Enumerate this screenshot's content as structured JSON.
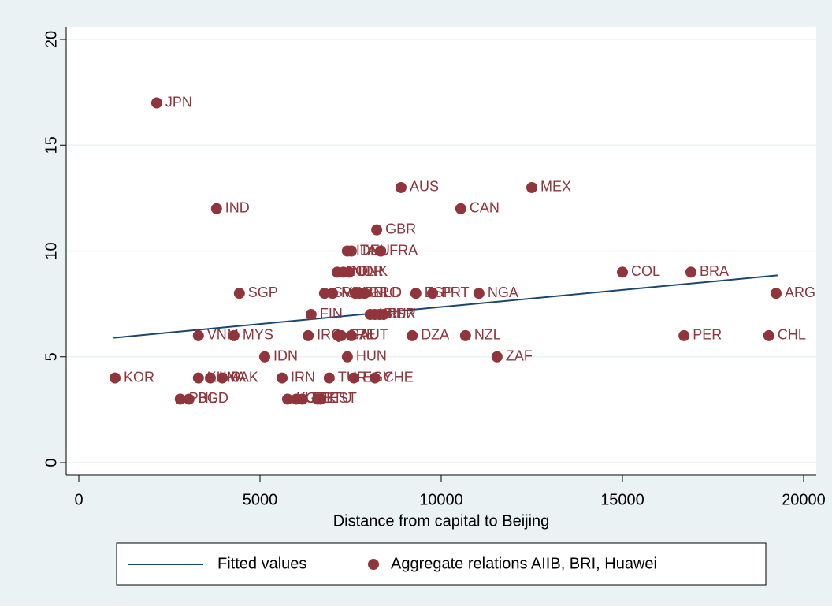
{
  "chart_data": {
    "type": "scatter",
    "xlabel": "Distance from capital to Beijing",
    "xlim": [
      0,
      20000
    ],
    "xticks": [
      0,
      5000,
      10000,
      15000,
      20000
    ],
    "ylim": [
      0,
      20
    ],
    "yticks": [
      0,
      5,
      10,
      15,
      20
    ],
    "grid": true,
    "legend": "bottom",
    "series": [
      {
        "name": "Fitted values",
        "type": "line",
        "color": "#1a476f",
        "x": [
          960,
          19280
        ],
        "values": [
          5.9,
          8.85
        ]
      },
      {
        "name": "Aggregate relations AIIB, BRI, Huawei",
        "type": "scatter",
        "color": "#90353b",
        "x": [
          2150,
          3800,
          8890,
          12500,
          10540,
          8220,
          7410,
          7520,
          8330,
          15000,
          16890,
          7130,
          7300,
          7460,
          4430,
          19240,
          6780,
          7000,
          7630,
          7740,
          7890,
          9300,
          9760,
          11040,
          6410,
          8040,
          8170,
          8300,
          8410,
          3300,
          4280,
          6330,
          7150,
          7240,
          7520,
          9200,
          10670,
          16700,
          19040,
          5130,
          7410,
          11540,
          1000,
          3300,
          3630,
          3960,
          5610,
          6910,
          7590,
          8170,
          2800,
          3040,
          5760,
          6000,
          6170,
          6590,
          6670
        ],
        "values": [
          17,
          12,
          13,
          13,
          12,
          11,
          10,
          10,
          10,
          9,
          9,
          9,
          9,
          9,
          8,
          8,
          8,
          8,
          8,
          8,
          8,
          8,
          8,
          8,
          7,
          7,
          7,
          7,
          7,
          6,
          6,
          6,
          6,
          6,
          6,
          6,
          6,
          6,
          6,
          5,
          5,
          5,
          4,
          4,
          4,
          4,
          4,
          4,
          4,
          4,
          3,
          3,
          3,
          3,
          3,
          3,
          3
        ],
        "labels": [
          "JPN",
          "IND",
          "AUS",
          "MEX",
          "CAN",
          "GBR",
          "ITA",
          "DEU",
          "FRA",
          "COL",
          "BRA",
          "POL",
          "NOR",
          "DNK",
          "SGP",
          "ARG",
          "SVK",
          "ROU",
          "BEL",
          "GRC",
          "NLD",
          "ESP",
          "PRT",
          "NGA",
          "FIN",
          "ISL",
          "IRL",
          "LUX",
          "ISR",
          "VNM",
          "MYS",
          "IRQ",
          "ARE",
          "SAU",
          "AUT",
          "DZA",
          "NZL",
          "PER",
          "CHL",
          "IDN",
          "HUN",
          "ZAF",
          "KOR",
          "KHM",
          "LKA",
          "PAK",
          "IRN",
          "TUR",
          "EGY",
          "CHE",
          "PHL",
          "BGD",
          "KGZ",
          "UZB",
          "TJK",
          "LTU",
          "EST"
        ]
      }
    ]
  }
}
